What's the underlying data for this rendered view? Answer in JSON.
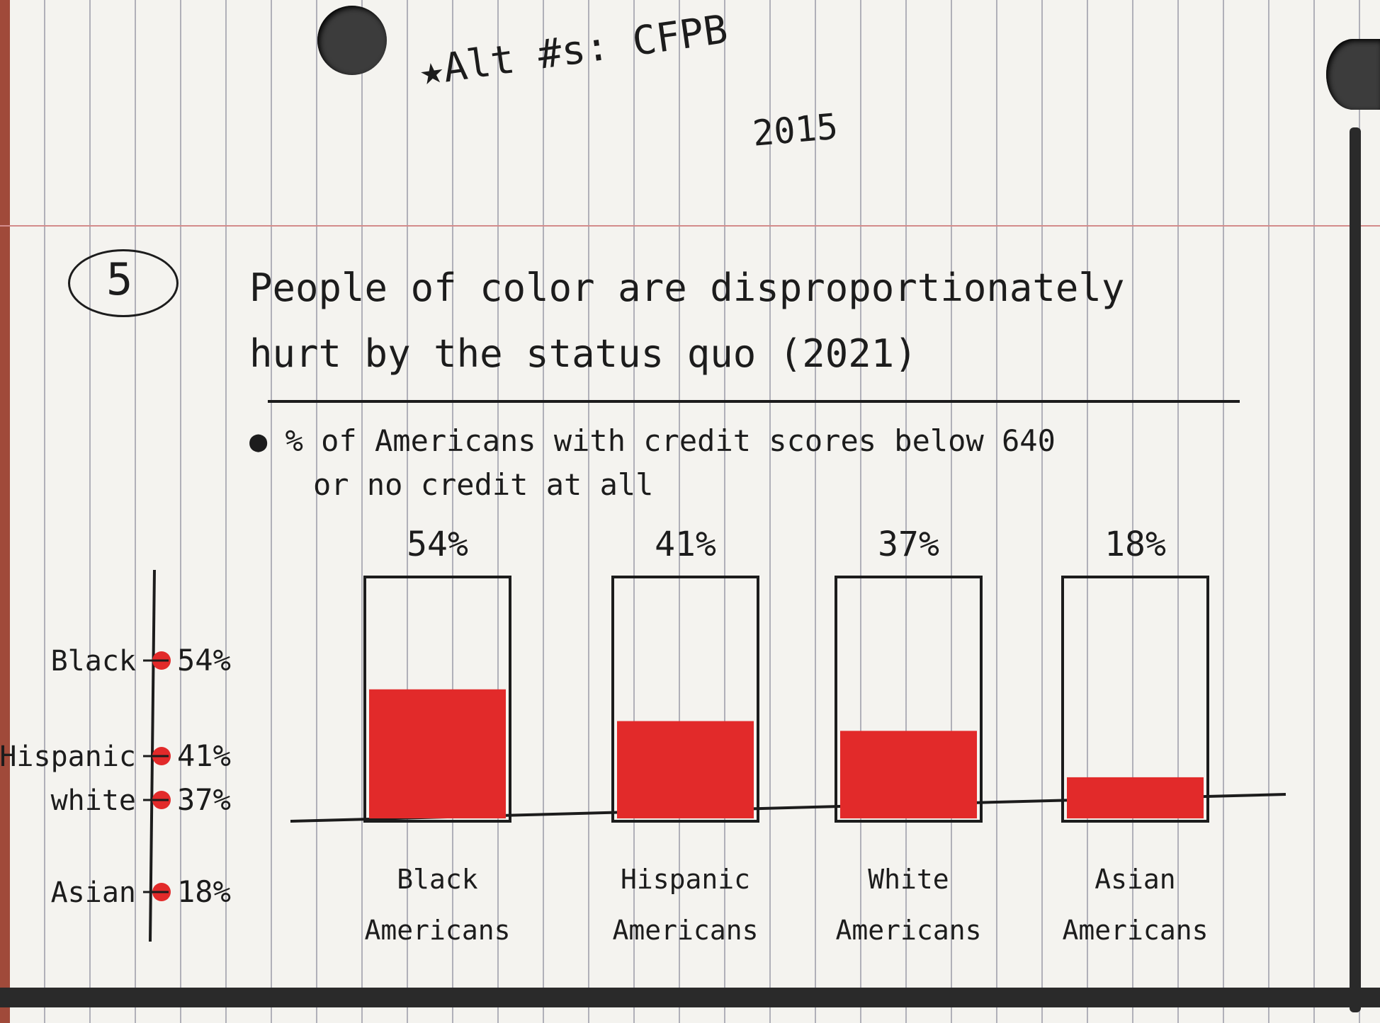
{
  "header_note": {
    "line1": "★Alt #s: CFPB",
    "line2": "2015"
  },
  "item_number": "5",
  "title_line1": "People of color are disproportionately",
  "title_line2": "hurt by the status quo (2021)",
  "subtitle_line1": "● % of Americans with credit scores below 640",
  "subtitle_line2": "or no credit at all",
  "chart_data": [
    {
      "type": "bar",
      "title": "% of Americans with credit scores below 640 or no credit at all",
      "categories": [
        "Black Americans",
        "Hispanic Americans",
        "White Americans",
        "Asian Americans"
      ],
      "values": [
        54,
        41,
        37,
        18
      ],
      "value_labels": [
        "54%",
        "41%",
        "37%",
        "18%"
      ],
      "ylim": [
        0,
        100
      ],
      "bar_fill_color": "#e22a2a",
      "grid": false,
      "legend": "none"
    },
    {
      "type": "scatter",
      "orientation": "vertical number line",
      "labels": [
        "Black",
        "Hispanic",
        "white",
        "Asian"
      ],
      "values": [
        54,
        41,
        37,
        18
      ],
      "value_labels": [
        "54%",
        "41%",
        "37%",
        "18%"
      ],
      "marker_color": "#e22a2a"
    }
  ]
}
